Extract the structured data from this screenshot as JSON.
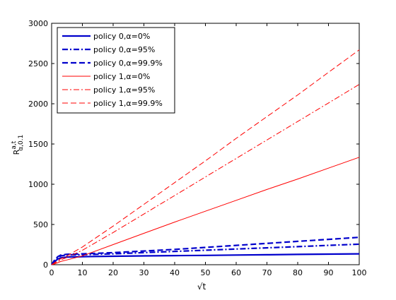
{
  "chart_data": {
    "type": "line",
    "title": "",
    "xlabel": "√t",
    "ylabel": "R^{a,t}_{α,0.1}",
    "xlim": [
      0,
      100
    ],
    "ylim": [
      0,
      3000
    ],
    "xticks": [
      0,
      10,
      20,
      30,
      40,
      50,
      60,
      70,
      80,
      90,
      100
    ],
    "yticks": [
      0,
      500,
      1000,
      1500,
      2000,
      2500,
      3000
    ],
    "grid": false,
    "legend_position": "top-left",
    "series": [
      {
        "name": "policy 0,α=0%",
        "color": "#0000cc",
        "style": "solid",
        "weight": "thick",
        "x": [
          0,
          1,
          2,
          3,
          5,
          10,
          20,
          30,
          40,
          50,
          60,
          70,
          80,
          90,
          100
        ],
        "y": [
          0,
          40,
          70,
          85,
          95,
          100,
          105,
          110,
          113,
          116,
          120,
          124,
          128,
          132,
          135
        ]
      },
      {
        "name": "policy 0,α=95%",
        "color": "#0000cc",
        "style": "dashdot",
        "weight": "thick",
        "x": [
          0,
          1,
          2,
          3,
          5,
          10,
          20,
          30,
          40,
          50,
          60,
          70,
          80,
          90,
          100
        ],
        "y": [
          0,
          50,
          90,
          110,
          120,
          125,
          135,
          150,
          165,
          180,
          195,
          210,
          225,
          240,
          255
        ]
      },
      {
        "name": "policy 0,α=99.9%",
        "color": "#0000cc",
        "style": "dashed",
        "weight": "thick",
        "x": [
          0,
          1,
          2,
          3,
          5,
          10,
          20,
          30,
          40,
          50,
          60,
          70,
          80,
          90,
          100
        ],
        "y": [
          0,
          60,
          100,
          120,
          130,
          135,
          150,
          170,
          190,
          215,
          240,
          265,
          290,
          315,
          340
        ]
      },
      {
        "name": "policy 1,α=0%",
        "color": "#ff0000",
        "style": "solid",
        "weight": "thin",
        "x": [
          0,
          1,
          2,
          3,
          5,
          10,
          20,
          30,
          40,
          50,
          60,
          70,
          80,
          90,
          100
        ],
        "y": [
          0,
          10,
          25,
          40,
          60,
          110,
          250,
          390,
          530,
          665,
          800,
          935,
          1065,
          1200,
          1335
        ]
      },
      {
        "name": "policy 1,α=95%",
        "color": "#ff0000",
        "style": "dashdot",
        "weight": "thin",
        "x": [
          0,
          1,
          2,
          3,
          5,
          10,
          20,
          30,
          40,
          50,
          60,
          70,
          80,
          90,
          100
        ],
        "y": [
          0,
          20,
          40,
          60,
          90,
          180,
          400,
          630,
          860,
          1090,
          1320,
          1550,
          1780,
          2010,
          2240
        ]
      },
      {
        "name": "policy 1,α=99.9%",
        "color": "#ff0000",
        "style": "dashed",
        "weight": "thin",
        "x": [
          0,
          1,
          2,
          3,
          5,
          10,
          20,
          30,
          40,
          50,
          60,
          70,
          80,
          90,
          100
        ],
        "y": [
          0,
          25,
          50,
          75,
          110,
          220,
          480,
          750,
          1020,
          1290,
          1570,
          1840,
          2110,
          2390,
          2670
        ]
      }
    ]
  }
}
